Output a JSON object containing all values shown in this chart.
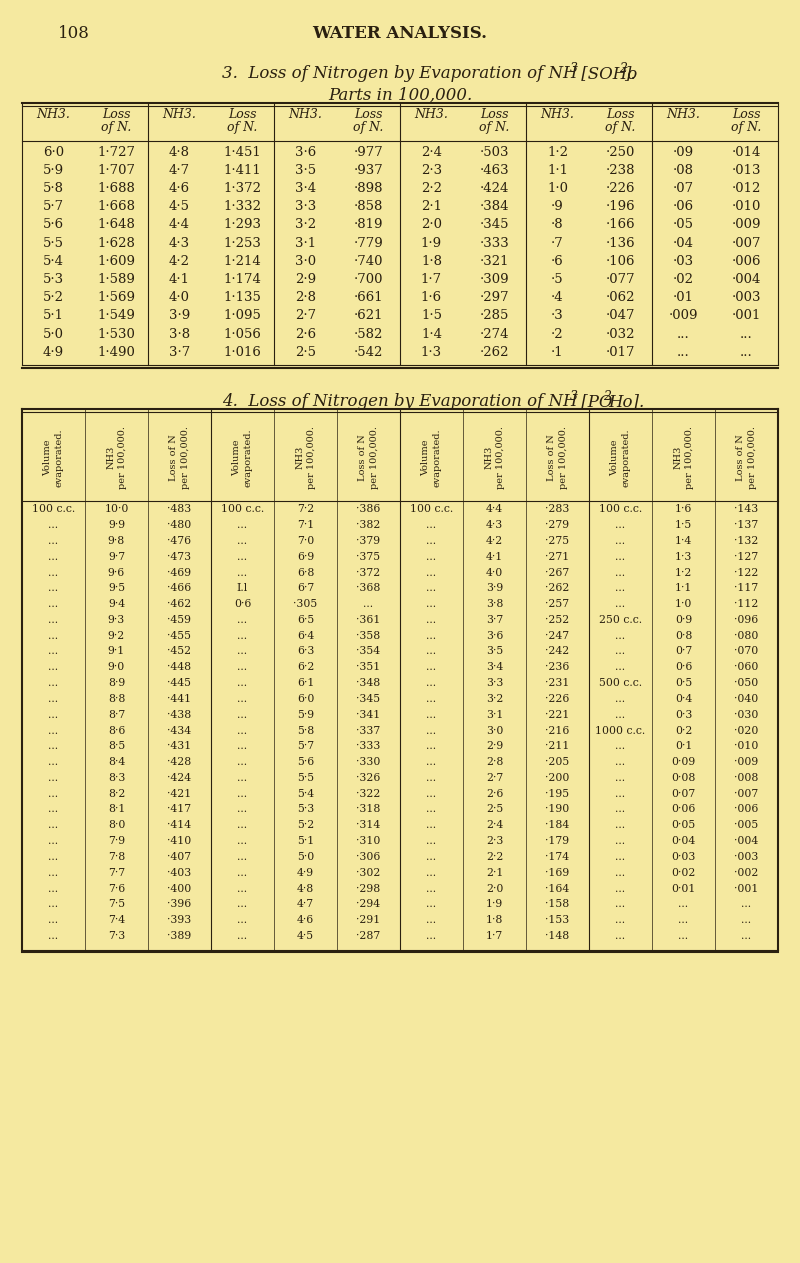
{
  "page_num": "108",
  "page_title": "WATER ANALYSIS.",
  "bg_color": "#f5e9a0",
  "text_color": "#2a2010",
  "table1_col_headers": [
    "NH3.",
    "Loss\nof N.",
    "NH3.",
    "Loss\nof N.",
    "NH3.",
    "Loss\nof N.",
    "NH3.",
    "Loss\nof N.",
    "NH3.",
    "Loss\nof N.",
    "NH3.",
    "Loss\nof N."
  ],
  "table1_data": [
    [
      "6·0",
      "1·727",
      "4·8",
      "1·451",
      "3·6",
      "·977",
      "2·4",
      "·503",
      "1·2",
      "·250",
      "·09",
      "·014"
    ],
    [
      "5·9",
      "1·707",
      "4·7",
      "1·411",
      "3·5",
      "·937",
      "2·3",
      "·463",
      "1·1",
      "·238",
      "·08",
      "·013"
    ],
    [
      "5·8",
      "1·688",
      "4·6",
      "1·372",
      "3·4",
      "·898",
      "2·2",
      "·424",
      "1·0",
      "·226",
      "·07",
      "·012"
    ],
    [
      "5·7",
      "1·668",
      "4·5",
      "1·332",
      "3·3",
      "·858",
      "2·1",
      "·384",
      "·9",
      "·196",
      "·06",
      "·010"
    ],
    [
      "5·6",
      "1·648",
      "4·4",
      "1·293",
      "3·2",
      "·819",
      "2·0",
      "·345",
      "·8",
      "·166",
      "·05",
      "·009"
    ],
    [
      "5·5",
      "1·628",
      "4·3",
      "1·253",
      "3·1",
      "·779",
      "1·9",
      "·333",
      "·7",
      "·136",
      "·04",
      "·007"
    ],
    [
      "5·4",
      "1·609",
      "4·2",
      "1·214",
      "3·0",
      "·740",
      "1·8",
      "·321",
      "·6",
      "·106",
      "·03",
      "·006"
    ],
    [
      "5·3",
      "1·589",
      "4·1",
      "1·174",
      "2·9",
      "·700",
      "1·7",
      "·309",
      "·5",
      "·077",
      "·02",
      "·004"
    ],
    [
      "5·2",
      "1·569",
      "4·0",
      "1·135",
      "2·8",
      "·661",
      "1·6",
      "·297",
      "·4",
      "·062",
      "·01",
      "·003"
    ],
    [
      "5·1",
      "1·549",
      "3·9",
      "1·095",
      "2·7",
      "·621",
      "1·5",
      "·285",
      "·3",
      "·047",
      "·009",
      "·001"
    ],
    [
      "5·0",
      "1·530",
      "3·8",
      "1·056",
      "2·6",
      "·582",
      "1·4",
      "·274",
      "·2",
      "·032",
      "...",
      "..."
    ],
    [
      "4·9",
      "1·490",
      "3·7",
      "1·016",
      "2·5",
      "·542",
      "1·3",
      "·262",
      "·1",
      "·017",
      "...",
      "..."
    ]
  ],
  "table2_col_headers": [
    "Volume\nevaporated.",
    "NH3\nper 100,000.",
    "Loss of N\nper 100,000.",
    "Volume\nevaporated.",
    "NH3\nper 100,000.",
    "Loss of N\nper 100,000.",
    "Volume\nevaporated.",
    "NH3\nper 100,000.",
    "Loss of N\nper 100,000.",
    "Volume\nevaporated.",
    "NH3\nper 100,000.",
    "Loss of N\nper 100,000."
  ],
  "table2_data": [
    [
      "100 c.c.",
      "10·0",
      "·483",
      "100 c.c.",
      "7·2",
      "·386",
      "100 c.c.",
      "4·4",
      "·283",
      "100 c.c.",
      "1·6",
      "·143"
    ],
    [
      "...",
      "9·9",
      "·480",
      "...",
      "7·1",
      "·382",
      "...",
      "4·3",
      "·279",
      "...",
      "1·5",
      "·137"
    ],
    [
      "...",
      "9·8",
      "·476",
      "...",
      "7·0",
      "·379",
      "...",
      "4·2",
      "·275",
      "...",
      "1·4",
      "·132"
    ],
    [
      "...",
      "9·7",
      "·473",
      "...",
      "6·9",
      "·375",
      "...",
      "4·1",
      "·271",
      "...",
      "1·3",
      "·127"
    ],
    [
      "...",
      "9·6",
      "·469",
      "...",
      "6·8",
      "·372",
      "...",
      "4·0",
      "·267",
      "...",
      "1·2",
      "·122"
    ],
    [
      "...",
      "9·5",
      "·466",
      "I.l",
      "6·7",
      "·368",
      "...",
      "3·9",
      "·262",
      "...",
      "1·1",
      "·117"
    ],
    [
      "...",
      "9·4",
      "·462",
      "0·6",
      "·305",
      "...",
      "...",
      "3·8",
      "·257",
      "...",
      "1·0",
      "·112"
    ],
    [
      "...",
      "9·3",
      "·459",
      "...",
      "6·5",
      "·361",
      "...",
      "3·7",
      "·252",
      "250 c.c.",
      "0·9",
      "·096"
    ],
    [
      "...",
      "9·2",
      "·455",
      "...",
      "6·4",
      "·358",
      "...",
      "3·6",
      "·247",
      "...",
      "0·8",
      "·080"
    ],
    [
      "...",
      "9·1",
      "·452",
      "...",
      "6·3",
      "·354",
      "...",
      "3·5",
      "·242",
      "...",
      "0·7",
      "·070"
    ],
    [
      "...",
      "9·0",
      "·448",
      "...",
      "6·2",
      "·351",
      "...",
      "3·4",
      "·236",
      "...",
      "0·6",
      "·060"
    ],
    [
      "...",
      "8·9",
      "·445",
      "...",
      "6·1",
      "·348",
      "...",
      "3·3",
      "·231",
      "500 c.c.",
      "0·5",
      "·050"
    ],
    [
      "...",
      "8·8",
      "·441",
      "...",
      "6·0",
      "·345",
      "...",
      "3·2",
      "·226",
      "...",
      "0·4",
      "·040"
    ],
    [
      "...",
      "8·7",
      "·438",
      "...",
      "5·9",
      "·341",
      "...",
      "3·1",
      "·221",
      "...",
      "0·3",
      "·030"
    ],
    [
      "...",
      "8·6",
      "·434",
      "...",
      "5·8",
      "·337",
      "...",
      "3·0",
      "·216",
      "1000 c.c.",
      "0·2",
      "·020"
    ],
    [
      "...",
      "8·5",
      "·431",
      "...",
      "5·7",
      "·333",
      "...",
      "2·9",
      "·211",
      "...",
      "0·1",
      "·010"
    ],
    [
      "...",
      "8·4",
      "·428",
      "...",
      "5·6",
      "·330",
      "...",
      "2·8",
      "·205",
      "...",
      "0·09",
      "·009"
    ],
    [
      "...",
      "8·3",
      "·424",
      "...",
      "5·5",
      "·326",
      "...",
      "2·7",
      "·200",
      "...",
      "0·08",
      "·008"
    ],
    [
      "...",
      "8·2",
      "·421",
      "...",
      "5·4",
      "·322",
      "...",
      "2·6",
      "·195",
      "...",
      "0·07",
      "·007"
    ],
    [
      "...",
      "8·1",
      "·417",
      "...",
      "5·3",
      "·318",
      "...",
      "2·5",
      "·190",
      "...",
      "0·06",
      "·006"
    ],
    [
      "...",
      "8·0",
      "·414",
      "...",
      "5·2",
      "·314",
      "...",
      "2·4",
      "·184",
      "...",
      "0·05",
      "·005"
    ],
    [
      "...",
      "7·9",
      "·410",
      "...",
      "5·1",
      "·310",
      "...",
      "2·3",
      "·179",
      "...",
      "0·04",
      "·004"
    ],
    [
      "...",
      "7·8",
      "·407",
      "...",
      "5·0",
      "·306",
      "...",
      "2·2",
      "·174",
      "...",
      "0·03",
      "·003"
    ],
    [
      "...",
      "7·7",
      "·403",
      "...",
      "4·9",
      "·302",
      "...",
      "2·1",
      "·169",
      "...",
      "0·02",
      "·002"
    ],
    [
      "...",
      "7·6",
      "·400",
      "...",
      "4·8",
      "·298",
      "...",
      "2·0",
      "·164",
      "...",
      "0·01",
      "·001"
    ],
    [
      "...",
      "7·5",
      "·396",
      "...",
      "4·7",
      "·294",
      "...",
      "1·9",
      "·158",
      "...",
      "...",
      "..."
    ],
    [
      "...",
      "7·4",
      "·393",
      "...",
      "4·6",
      "·291",
      "...",
      "1·8",
      "·153",
      "...",
      "...",
      "..."
    ],
    [
      "...",
      "7·3",
      "·389",
      "...",
      "4·5",
      "·287",
      "...",
      "1·7",
      "·148",
      "...",
      "...",
      "..."
    ]
  ]
}
